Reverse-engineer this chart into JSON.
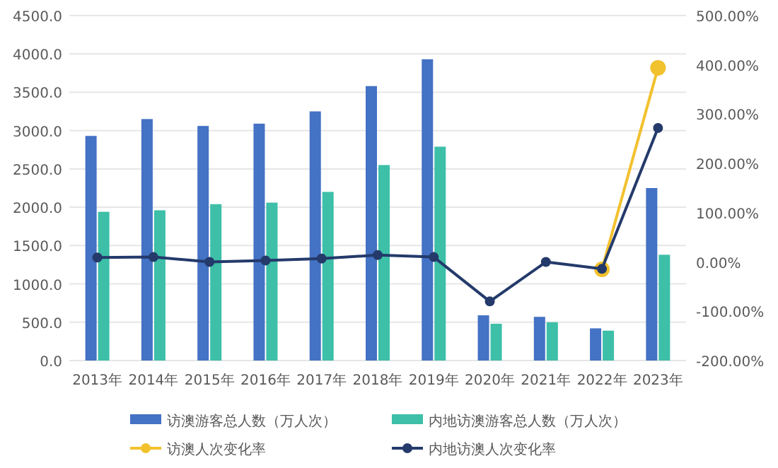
{
  "chart_data": {
    "type": "bar",
    "categories": [
      "2013年",
      "2014年",
      "2015年",
      "2016年",
      "2017年",
      "2018年",
      "2019年",
      "2020年",
      "2021年",
      "2022年",
      "2023年"
    ],
    "series": [
      {
        "name": "访澳游客总人数（万人次）",
        "color": "#4472c4",
        "values": [
          2930,
          3150,
          3060,
          3090,
          3250,
          3580,
          3930,
          590,
          570,
          420,
          2250
        ]
      },
      {
        "name": "内地访澳游客总人数（万人次）",
        "color": "#3dbfa8",
        "values": [
          1940,
          1960,
          2040,
          2060,
          2200,
          2550,
          2790,
          480,
          500,
          390,
          1380
        ]
      },
      {
        "name": "访澳人次变化率",
        "type": "line",
        "axis": "y2",
        "color": "#f2c12e",
        "values": [
          null,
          null,
          null,
          null,
          null,
          null,
          null,
          null,
          null,
          -15,
          394
        ]
      },
      {
        "name": "内地访澳人次变化率",
        "type": "line",
        "axis": "y2",
        "color": "#243a6b",
        "values": [
          9,
          10,
          0,
          3,
          7,
          14,
          10,
          -80,
          0,
          -14,
          272
        ]
      }
    ],
    "ylim": [
      0,
      4500
    ],
    "yticks": [
      {
        "value": 0,
        "label": "0.0"
      },
      {
        "value": 500,
        "label": "500.0"
      },
      {
        "value": 1000,
        "label": "1000.0"
      },
      {
        "value": 1500,
        "label": "1500.0"
      },
      {
        "value": 2000,
        "label": "2000.0"
      },
      {
        "value": 2500,
        "label": "2500.0"
      },
      {
        "value": 3000,
        "label": "3000.0"
      },
      {
        "value": 3500,
        "label": "3500.0"
      },
      {
        "value": 4000,
        "label": "4000.0"
      },
      {
        "value": 4500,
        "label": "4500.0"
      }
    ],
    "y2lim": [
      -200,
      500
    ],
    "y2ticks": [
      {
        "value": -200,
        "label": "-200.00%"
      },
      {
        "value": -100,
        "label": "-100.00%"
      },
      {
        "value": 0,
        "label": "0.00%"
      },
      {
        "value": 100,
        "label": "100.00%"
      },
      {
        "value": 200,
        "label": "200.00%"
      },
      {
        "value": 300,
        "label": "300.00%"
      },
      {
        "value": 400,
        "label": "400.00%"
      },
      {
        "value": 500,
        "label": "500.00%"
      }
    ],
    "grid": "y",
    "legend": "bottom",
    "marker": "circle"
  }
}
